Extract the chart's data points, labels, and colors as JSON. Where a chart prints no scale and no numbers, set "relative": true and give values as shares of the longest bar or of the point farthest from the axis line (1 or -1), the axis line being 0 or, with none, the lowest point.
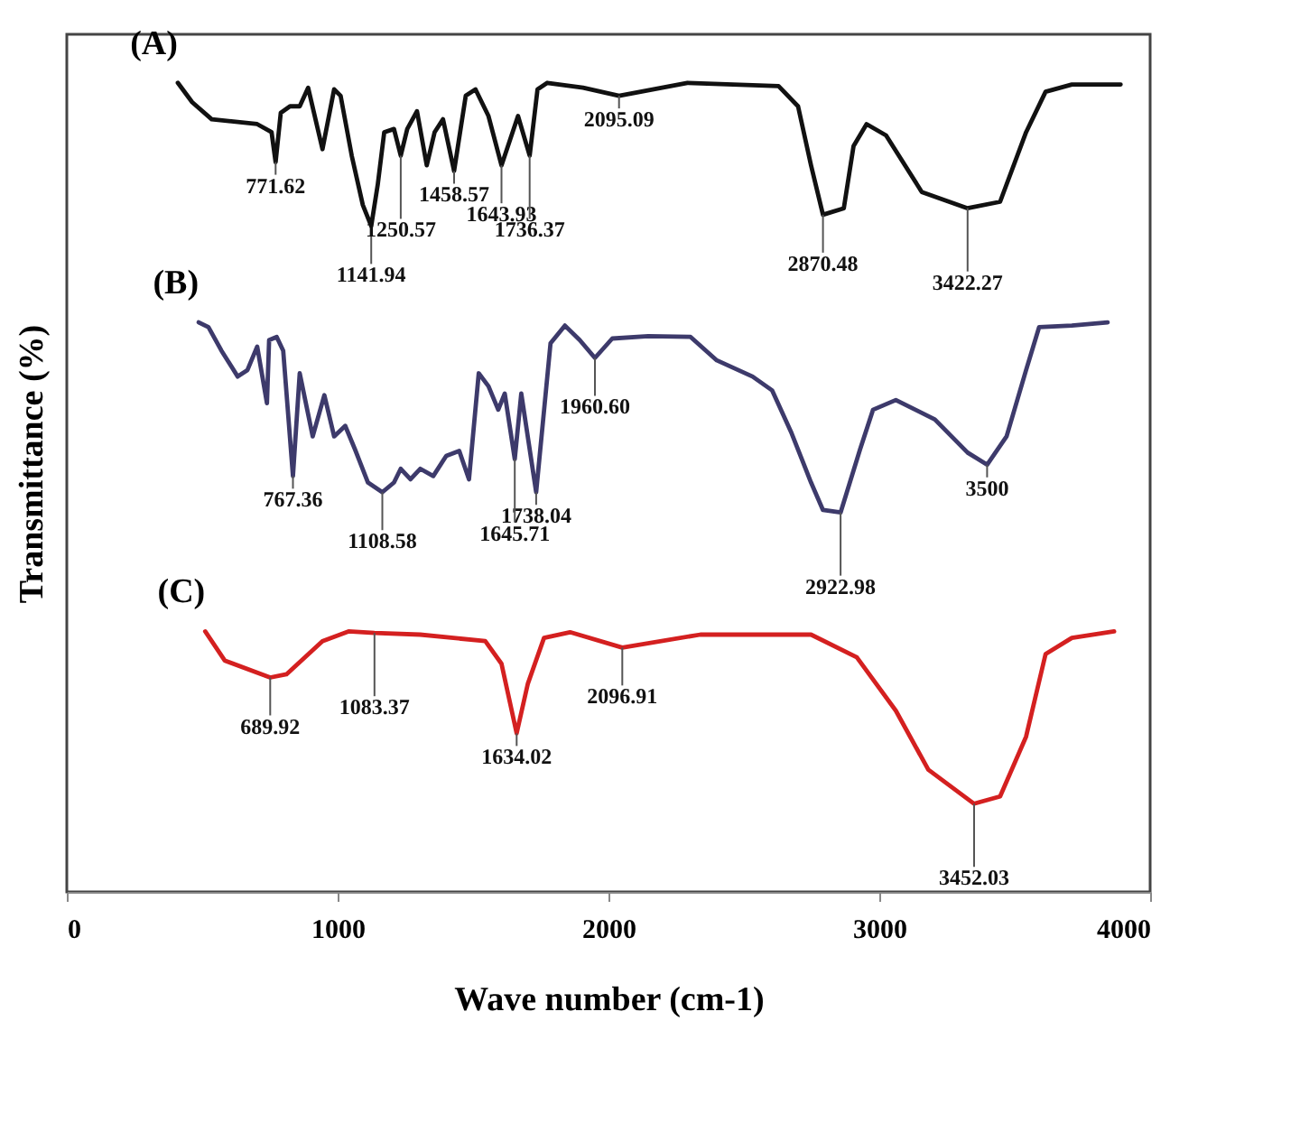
{
  "chart_data": {
    "type": "line",
    "relative": true,
    "xlabel": "Wave number (cm-1)",
    "ylabel": "Transmittance (%)",
    "xlim": [
      0,
      4000
    ],
    "xticks": [
      0,
      1000,
      2000,
      3000,
      4000
    ],
    "marker": "none",
    "line_style": "solid",
    "series": [
      {
        "name": "(A)",
        "color": "#111111",
        "x": [
          410,
          463,
          535,
          703,
          756,
          771,
          790,
          824,
          860,
          891,
          944,
          987,
          1011,
          1052,
          1093,
          1124,
          1148,
          1172,
          1208,
          1233,
          1257,
          1293,
          1329,
          1358,
          1389,
          1430,
          1473,
          1509,
          1557,
          1605,
          1666,
          1709,
          1738,
          1774,
          1906,
          2039,
          2291,
          2628,
          2700,
          2748,
          2792,
          2869,
          2905,
          2953,
          3025,
          3157,
          3326,
          3446,
          3542,
          3614,
          3711,
          3891
        ],
        "values": [
          1.0,
          0.976,
          0.955,
          0.949,
          0.939,
          0.902,
          0.963,
          0.971,
          0.971,
          0.994,
          0.918,
          0.992,
          0.984,
          0.91,
          0.849,
          0.823,
          0.874,
          0.939,
          0.943,
          0.91,
          0.943,
          0.965,
          0.898,
          0.939,
          0.955,
          0.891,
          0.984,
          0.992,
          0.959,
          0.898,
          0.959,
          0.91,
          0.992,
          1.0,
          0.994,
          0.984,
          1.0,
          0.996,
          0.971,
          0.898,
          0.837,
          0.845,
          0.922,
          0.949,
          0.935,
          0.865,
          0.845,
          0.853,
          0.939,
          0.989,
          0.998,
          0.998
        ]
      },
      {
        "name": "(B)",
        "color": "#3d3a6b",
        "x": [
          487,
          523,
          571,
          631,
          667,
          703,
          739,
          747,
          775,
          799,
          835,
          860,
          908,
          951,
          987,
          1028,
          1064,
          1112,
          1165,
          1208,
          1233,
          1269,
          1305,
          1353,
          1401,
          1449,
          1485,
          1521,
          1557,
          1593,
          1617,
          1654,
          1678,
          1733,
          1786,
          1839,
          1894,
          1950,
          2014,
          2147,
          2303,
          2400,
          2532,
          2604,
          2676,
          2748,
          2792,
          2857,
          2929,
          2977,
          3061,
          3205,
          3326,
          3398,
          3470,
          3542,
          3590,
          3711,
          3843
        ],
        "values": [
          0.704,
          0.698,
          0.669,
          0.637,
          0.645,
          0.674,
          0.604,
          0.682,
          0.686,
          0.669,
          0.514,
          0.641,
          0.563,
          0.614,
          0.563,
          0.576,
          0.547,
          0.506,
          0.494,
          0.506,
          0.523,
          0.51,
          0.523,
          0.514,
          0.539,
          0.545,
          0.51,
          0.641,
          0.625,
          0.596,
          0.616,
          0.535,
          0.616,
          0.494,
          0.678,
          0.7,
          0.682,
          0.66,
          0.684,
          0.687,
          0.686,
          0.657,
          0.637,
          0.62,
          0.567,
          0.506,
          0.472,
          0.469,
          0.547,
          0.596,
          0.608,
          0.584,
          0.543,
          0.528,
          0.563,
          0.645,
          0.698,
          0.7,
          0.704
        ]
      },
      {
        "name": "(C)",
        "color": "#d42020",
        "x": [
          511,
          583,
          751,
          811,
          944,
          1040,
          1136,
          1305,
          1545,
          1605,
          1661,
          1702,
          1762,
          1858,
          2051,
          2339,
          2748,
          2917,
          3061,
          3181,
          3350,
          3446,
          3542,
          3614,
          3711,
          3867
        ],
        "values": [
          0.322,
          0.286,
          0.265,
          0.269,
          0.31,
          0.322,
          0.32,
          0.318,
          0.31,
          0.282,
          0.196,
          0.257,
          0.314,
          0.321,
          0.302,
          0.318,
          0.318,
          0.29,
          0.224,
          0.151,
          0.109,
          0.118,
          0.192,
          0.294,
          0.314,
          0.322
        ]
      }
    ],
    "annotations": [
      {
        "text": "771.62",
        "x": 771,
        "y": 0.902
      },
      {
        "text": "1141.94",
        "x": 1124,
        "y": 0.823
      },
      {
        "text": "1250.57",
        "x": 1233,
        "y": 0.91
      },
      {
        "text": "1458.57",
        "x": 1430,
        "y": 0.891
      },
      {
        "text": "1643.93",
        "x": 1605,
        "y": 0.898
      },
      {
        "text": "1736.37",
        "x": 1709,
        "y": 0.91
      },
      {
        "text": "2095.09",
        "x": 2039,
        "y": 0.984
      },
      {
        "text": "2870.48",
        "x": 2792,
        "y": 0.837
      },
      {
        "text": "3422.27",
        "x": 3326,
        "y": 0.845
      },
      {
        "text": "767.36",
        "x": 835,
        "y": 0.514
      },
      {
        "text": "1108.58",
        "x": 1165,
        "y": 0.494
      },
      {
        "text": "1645.71",
        "x": 1654,
        "y": 0.535
      },
      {
        "text": "1738.04",
        "x": 1733,
        "y": 0.494
      },
      {
        "text": "1960.60",
        "x": 1950,
        "y": 0.66
      },
      {
        "text": "2922.98",
        "x": 2857,
        "y": 0.469
      },
      {
        "text": "3500",
        "x": 3398,
        "y": 0.528
      },
      {
        "text": "689.92",
        "x": 751,
        "y": 0.265
      },
      {
        "text": "1083.37",
        "x": 1136,
        "y": 0.32
      },
      {
        "text": "1634.02",
        "x": 1661,
        "y": 0.196
      },
      {
        "text": "2096.91",
        "x": 2051,
        "y": 0.302
      },
      {
        "text": "3452.03",
        "x": 3350,
        "y": 0.109
      }
    ]
  }
}
